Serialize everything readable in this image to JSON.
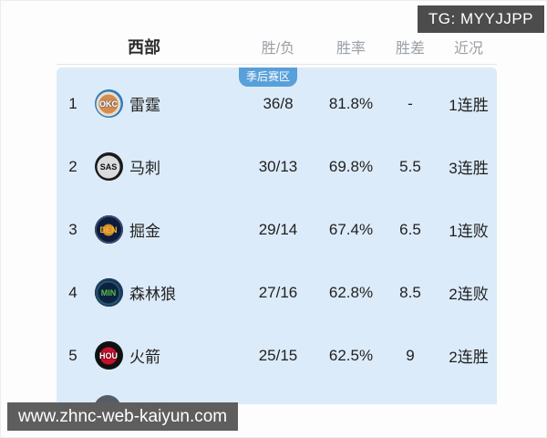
{
  "page": {
    "tg_badge": "TG: MYYJJPP",
    "watermark": "www.zhnc-web-kaiyun.com"
  },
  "standings": {
    "conference": "西部",
    "col_wl": "胜/负",
    "col_pct": "胜率",
    "col_gb": "胜差",
    "col_form": "近况",
    "playoff_zone_label": "季后赛区",
    "rows": [
      {
        "rank": "1",
        "abbr": "OKC",
        "name": "雷霆",
        "wl": "36/8",
        "pct": "81.8%",
        "gb": "-",
        "form": "1连胜"
      },
      {
        "rank": "2",
        "abbr": "SAS",
        "name": "马刺",
        "wl": "30/13",
        "pct": "69.8%",
        "gb": "5.5",
        "form": "3连胜"
      },
      {
        "rank": "3",
        "abbr": "DEN",
        "name": "掘金",
        "wl": "29/14",
        "pct": "67.4%",
        "gb": "6.5",
        "form": "1连败"
      },
      {
        "rank": "4",
        "abbr": "MIN",
        "name": "森林狼",
        "wl": "27/16",
        "pct": "62.8%",
        "gb": "8.5",
        "form": "2连败"
      },
      {
        "rank": "5",
        "abbr": "HOU",
        "name": "火箭",
        "wl": "25/15",
        "pct": "62.5%",
        "gb": "9",
        "form": "2连胜"
      }
    ]
  },
  "colors": {
    "panel_bg": "#dcebf9",
    "playoff_badge_bg": "#58a0da",
    "tg_badge_bg": "#4c4c4c",
    "watermark_bg": "#5e5e5e",
    "header_muted": "#9aa0a6"
  }
}
